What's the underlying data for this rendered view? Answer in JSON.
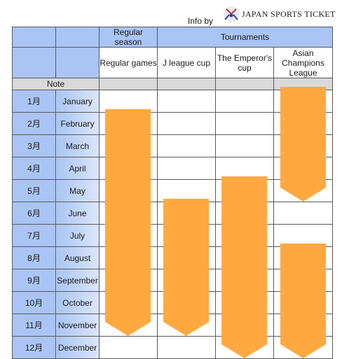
{
  "credit": {
    "info_by": "Info by",
    "brand": "JAPAN SPORTS TICKET"
  },
  "header": {
    "regular_season": "Regular season",
    "tournaments": "Tournaments",
    "columns": [
      "Regular games",
      "J league cup",
      "The Emperor's cup",
      "Asian Champions League"
    ],
    "note": "Note"
  },
  "months": [
    {
      "jp": "1月",
      "en": "January"
    },
    {
      "jp": "2月",
      "en": "February"
    },
    {
      "jp": "3月",
      "en": "March"
    },
    {
      "jp": "4月",
      "en": "April"
    },
    {
      "jp": "5月",
      "en": "May"
    },
    {
      "jp": "6月",
      "en": "June"
    },
    {
      "jp": "7月",
      "en": "July"
    },
    {
      "jp": "8月",
      "en": "August"
    },
    {
      "jp": "9月",
      "en": "September"
    },
    {
      "jp": "10月",
      "en": "October"
    },
    {
      "jp": "11月",
      "en": "November"
    },
    {
      "jp": "12月",
      "en": "December"
    }
  ],
  "periods": [
    {
      "competition": "Regular games",
      "start_month": 2,
      "end_month": 11,
      "color": "#ffa940"
    },
    {
      "competition": "J league cup",
      "start_month": 6,
      "end_month": 11,
      "color": "#ffa940"
    },
    {
      "competition": "The Emperor's cup",
      "start_month": 5,
      "end_month": 12,
      "color": "#ffa940"
    },
    {
      "competition": "Asian Champions League",
      "start_month": 1,
      "end_month": 5,
      "color": "#ffa940"
    },
    {
      "competition": "Asian Champions League",
      "start_month": 8,
      "end_month": 12,
      "color": "#ffa940"
    }
  ],
  "colors": {
    "header_blue": "#a9c4f5",
    "note_grey": "#d9d9d9",
    "arrow_orange": "#ffa940"
  }
}
